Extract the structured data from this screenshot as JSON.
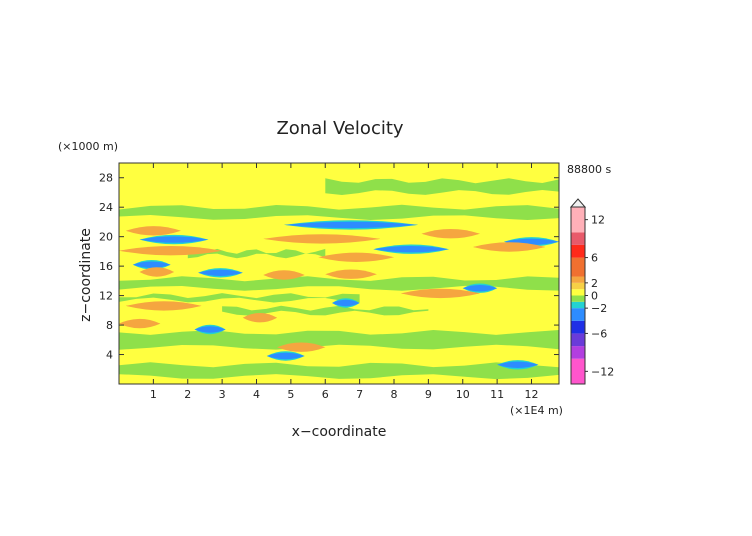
{
  "chart_data": {
    "type": "heatmap",
    "title": "Zonal Velocity",
    "xlabel": "x−coordinate",
    "ylabel": "z−coordinate",
    "x_unit": "(×1E4 m)",
    "y_unit": "(×1000 m)",
    "time_label": "88800 s",
    "xlim": [
      0,
      12.8
    ],
    "ylim": [
      0,
      30
    ],
    "x_ticks": [
      1,
      2,
      3,
      4,
      5,
      6,
      7,
      8,
      9,
      10,
      11,
      12
    ],
    "y_ticks": [
      4,
      8,
      12,
      16,
      20,
      24,
      28
    ],
    "colorbar": {
      "labels": [
        "12",
        "6",
        "2",
        "0",
        "−2",
        "−6",
        "−12"
      ],
      "label_values": [
        12,
        6,
        2,
        0,
        -2,
        -6,
        -12
      ],
      "levels": [
        {
          "from": -14,
          "to": -10,
          "color": "#ff55cc"
        },
        {
          "from": -10,
          "to": -8,
          "color": "#b23ee0"
        },
        {
          "from": -8,
          "to": -6,
          "color": "#6a3bd9"
        },
        {
          "from": -6,
          "to": -4,
          "color": "#1f2fe6"
        },
        {
          "from": -4,
          "to": -2,
          "color": "#2d8cff"
        },
        {
          "from": -2,
          "to": -1,
          "color": "#23d2d2"
        },
        {
          "from": -1,
          "to": 0,
          "color": "#8fe04a"
        },
        {
          "from": 0,
          "to": 1,
          "color": "#ffff40"
        },
        {
          "from": 1,
          "to": 2,
          "color": "#f7d046"
        },
        {
          "from": 2,
          "to": 3,
          "color": "#f5a640"
        },
        {
          "from": 3,
          "to": 6,
          "color": "#f07030"
        },
        {
          "from": 6,
          "to": 8,
          "color": "#ff2a1a"
        },
        {
          "from": 8,
          "to": 10,
          "color": "#e85a6a"
        },
        {
          "from": 10,
          "to": 14,
          "color": "#ffb0b8"
        }
      ]
    },
    "bands": [
      {
        "z": 21.6,
        "value": -2.5,
        "x": [
          4.8,
          8.7
        ]
      },
      {
        "z": 20.8,
        "value": 2.5,
        "x": [
          0.2,
          1.8
        ]
      },
      {
        "z": 20.4,
        "value": 2.5,
        "x": [
          8.8,
          10.5
        ]
      },
      {
        "z": 19.7,
        "value": 2.5,
        "x": [
          4.2,
          7.6
        ]
      },
      {
        "z": 19.6,
        "value": -2.5,
        "x": [
          0.6,
          2.6
        ]
      },
      {
        "z": 19.3,
        "value": -2.5,
        "x": [
          11.2,
          12.8
        ]
      },
      {
        "z": 18.6,
        "value": 2.5,
        "x": [
          10.3,
          12.4
        ]
      },
      {
        "z": 18.3,
        "value": -2.5,
        "x": [
          7.4,
          9.6
        ]
      },
      {
        "z": 18.1,
        "value": 2.5,
        "x": [
          0.0,
          3.0
        ]
      },
      {
        "z": 17.2,
        "value": 2.5,
        "x": [
          5.8,
          8.0
        ]
      },
      {
        "z": 16.2,
        "value": -2.5,
        "x": [
          0.4,
          1.5
        ]
      },
      {
        "z": 15.2,
        "value": 2.5,
        "x": [
          0.6,
          1.6
        ]
      },
      {
        "z": 15.1,
        "value": -2.5,
        "x": [
          2.3,
          3.6
        ]
      },
      {
        "z": 14.8,
        "value": 2.5,
        "x": [
          4.2,
          5.4
        ]
      },
      {
        "z": 14.9,
        "value": 2.5,
        "x": [
          6.0,
          7.5
        ]
      },
      {
        "z": 13.0,
        "value": -2.5,
        "x": [
          10.0,
          11.0
        ]
      },
      {
        "z": 12.3,
        "value": 2.5,
        "x": [
          8.2,
          10.5
        ]
      },
      {
        "z": 11.0,
        "value": -2.5,
        "x": [
          6.2,
          7.0
        ]
      },
      {
        "z": 10.6,
        "value": 2.5,
        "x": [
          0.2,
          2.4
        ]
      },
      {
        "z": 9.0,
        "value": 2.5,
        "x": [
          3.6,
          4.6
        ]
      },
      {
        "z": 8.2,
        "value": 2.5,
        "x": [
          0.0,
          1.2
        ]
      },
      {
        "z": 7.4,
        "value": -2.5,
        "x": [
          2.2,
          3.1
        ]
      },
      {
        "z": 5.0,
        "value": 2.5,
        "x": [
          4.6,
          6.0
        ]
      },
      {
        "z": 3.8,
        "value": -2.5,
        "x": [
          4.3,
          5.4
        ]
      },
      {
        "z": 2.6,
        "value": -2.5,
        "x": [
          11.0,
          12.2
        ]
      }
    ],
    "background_value": 0.5,
    "negative_zones": [
      {
        "z": [
          5,
          7
        ],
        "x": [
          0.0,
          12.8
        ]
      },
      {
        "z": [
          13,
          14.3
        ],
        "x": [
          0.0,
          12.8
        ]
      },
      {
        "z": [
          22.6,
          24
        ],
        "x": [
          0.0,
          12.8
        ]
      },
      {
        "z": [
          1.0,
          2.6
        ],
        "x": [
          0.0,
          12.8
        ]
      },
      {
        "z": [
          9.6,
          10.3
        ],
        "x": [
          3.0,
          9.0
        ]
      },
      {
        "z": [
          26.0,
          27.6
        ],
        "x": [
          6.0,
          12.8
        ]
      },
      {
        "z": [
          17.4,
          18.0
        ],
        "x": [
          2.0,
          6.0
        ]
      },
      {
        "z": [
          11.4,
          12.0
        ],
        "x": [
          0.0,
          7.0
        ]
      }
    ]
  }
}
